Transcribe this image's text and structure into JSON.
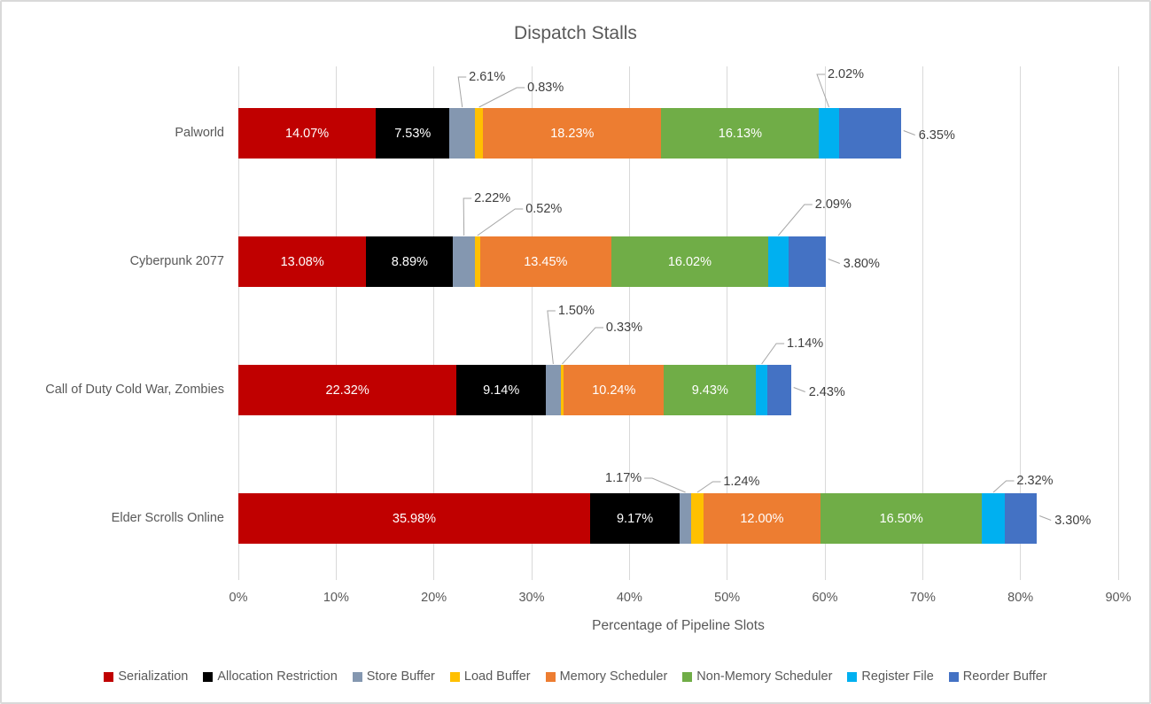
{
  "chart_data": {
    "type": "bar",
    "orientation": "horizontal_stacked",
    "title": "Dispatch Stalls",
    "xlabel": "Percentage of Pipeline Slots",
    "xlim": [
      0,
      90
    ],
    "x_tick_labels": [
      "0%",
      "10%",
      "20%",
      "30%",
      "40%",
      "50%",
      "60%",
      "70%",
      "80%",
      "90%"
    ],
    "grid": "vertical",
    "legend_position": "bottom",
    "categories": [
      "Palworld",
      "Cyberpunk 2077",
      "Call of Duty Cold War, Zombies",
      "Elder Scrolls Online"
    ],
    "series": [
      {
        "name": "Serialization",
        "color": "#C00000",
        "label_placement": "inside",
        "values": [
          14.07,
          13.08,
          22.32,
          35.98
        ],
        "labels": [
          "14.07%",
          "13.08%",
          "22.32%",
          "35.98%"
        ]
      },
      {
        "name": "Allocation Restriction",
        "color": "#000000",
        "label_placement": "inside",
        "values": [
          7.53,
          8.89,
          9.14,
          9.17
        ],
        "labels": [
          "7.53%",
          "8.89%",
          "9.14%",
          "9.17%"
        ]
      },
      {
        "name": "Store Buffer",
        "color": "#8497B0",
        "label_placement": "callout_above",
        "values": [
          2.61,
          2.22,
          1.5,
          1.17
        ],
        "labels": [
          "2.61%",
          "2.22%",
          "1.50%",
          "1.17%"
        ]
      },
      {
        "name": "Load Buffer",
        "color": "#FFC000",
        "label_placement": "callout_above",
        "values": [
          0.83,
          0.52,
          0.33,
          1.24
        ],
        "labels": [
          "0.83%",
          "0.52%",
          "0.33%",
          "1.24%"
        ]
      },
      {
        "name": "Memory Scheduler",
        "color": "#ED7D31",
        "label_placement": "inside",
        "values": [
          18.23,
          13.45,
          10.24,
          12.0
        ],
        "labels": [
          "18.23%",
          "13.45%",
          "10.24%",
          "12.00%"
        ]
      },
      {
        "name": "Non-Memory Scheduler",
        "color": "#70AD47",
        "label_placement": "inside",
        "values": [
          16.13,
          16.02,
          9.43,
          16.5
        ],
        "labels": [
          "16.13%",
          "16.02%",
          "9.43%",
          "16.50%"
        ]
      },
      {
        "name": "Register File",
        "color": "#00B0F0",
        "label_placement": "callout_above",
        "values": [
          2.02,
          2.09,
          1.14,
          2.32
        ],
        "labels": [
          "2.02%",
          "2.09%",
          "1.14%",
          "2.32%"
        ]
      },
      {
        "name": "Reorder Buffer",
        "color": "#4472C4",
        "label_placement": "callout_right",
        "values": [
          6.35,
          3.8,
          2.43,
          3.3
        ],
        "labels": [
          "6.35%",
          "3.80%",
          "2.43%",
          "3.30%"
        ]
      }
    ],
    "colors": {
      "gridline": "#D9D9D9",
      "chart_border": "#D9D9D9",
      "title_text": "#595959",
      "axis_text": "#595959",
      "callout_text": "#404040",
      "inside_label_text": "#FFFFFF",
      "leader_line": "#A6A6A6"
    }
  }
}
